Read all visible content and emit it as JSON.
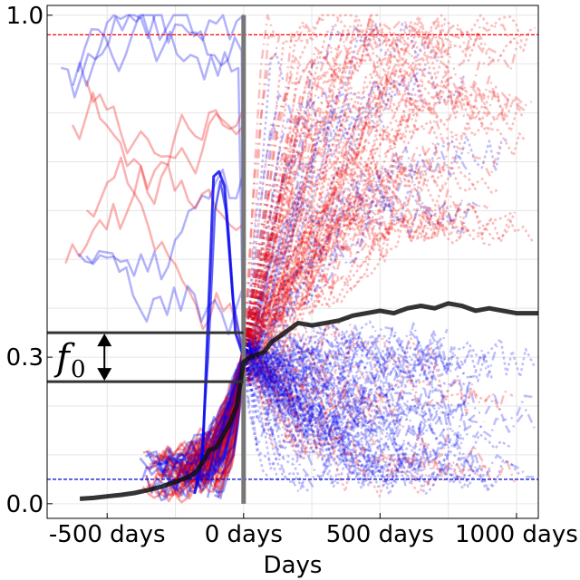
{
  "chart_data": {
    "type": "line",
    "xlabel": "Days",
    "ylabel": "",
    "xlim": [
      -720,
      1080
    ],
    "ylim": [
      -0.03,
      1.02
    ],
    "x_ticks": [
      {
        "value": -500,
        "label": "-500 days"
      },
      {
        "value": 0,
        "label": "0 days"
      },
      {
        "value": 500,
        "label": "500 days"
      },
      {
        "value": 1000,
        "label": "1000 days"
      }
    ],
    "y_ticks": [
      {
        "value": 0.0,
        "label": "0.0"
      },
      {
        "value": 0.3,
        "label": "0.3"
      },
      {
        "value": 1.0,
        "label": "1.0"
      }
    ],
    "grid": true,
    "reference_lines": [
      {
        "orientation": "horizontal",
        "y": 0.96,
        "color": "#ff0000",
        "style": "dashed"
      },
      {
        "orientation": "horizontal",
        "y": 0.05,
        "color": "#0000cc",
        "style": "dashed"
      },
      {
        "orientation": "vertical",
        "x": 0,
        "color": "#777777",
        "style": "solid"
      }
    ],
    "annotation": {
      "symbol": "f",
      "subscript": "0",
      "band_upper": 0.35,
      "band_lower": 0.25,
      "band_x_range": [
        -720,
        0
      ],
      "arrow_x": -510
    },
    "series": [
      {
        "role": "mean",
        "color": "#111111",
        "x": [
          -600,
          -550,
          -500,
          -450,
          -400,
          -350,
          -300,
          -250,
          -200,
          -175,
          -150,
          -125,
          -100,
          -75,
          -50,
          -25,
          0,
          25,
          50,
          75,
          100,
          150,
          200,
          250,
          300,
          350,
          400,
          450,
          500,
          550,
          600,
          650,
          700,
          750,
          800,
          850,
          900,
          950,
          1000,
          1050,
          1080
        ],
        "y": [
          0.01,
          0.012,
          0.015,
          0.018,
          0.022,
          0.028,
          0.035,
          0.045,
          0.055,
          0.065,
          0.085,
          0.11,
          0.115,
          0.14,
          0.165,
          0.2,
          0.29,
          0.3,
          0.305,
          0.31,
          0.33,
          0.35,
          0.37,
          0.365,
          0.37,
          0.375,
          0.385,
          0.39,
          0.395,
          0.39,
          0.4,
          0.405,
          0.4,
          0.41,
          0.405,
          0.395,
          0.4,
          0.395,
          0.39,
          0.39,
          0.39
        ]
      }
    ],
    "background_traces": {
      "groups": [
        {
          "color": "#0000ee",
          "description": "blue trajectories"
        },
        {
          "color": "#ee0000",
          "description": "red trajectories"
        }
      ]
    }
  }
}
